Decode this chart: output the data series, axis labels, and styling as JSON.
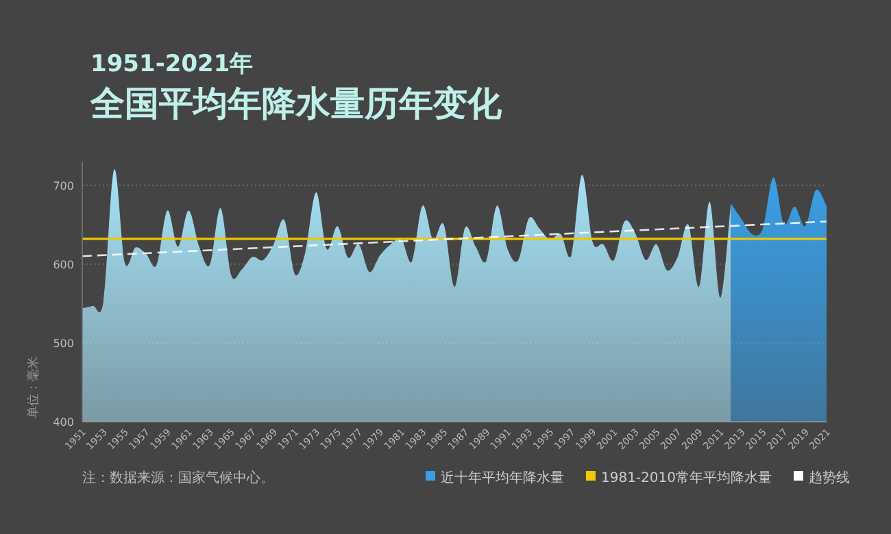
{
  "chart_data": {
    "type": "area",
    "subtitle": "1951-2021年",
    "title": "全国平均年降水量历年变化",
    "ylabel": "单位：毫米",
    "annotations": [
      "注：数据来源：国家气候中心。"
    ],
    "xlim": [
      1951,
      2021
    ],
    "xticks": [
      1951,
      1953,
      1955,
      1957,
      1959,
      1961,
      1963,
      1965,
      1967,
      1969,
      1971,
      1973,
      1975,
      1977,
      1979,
      1981,
      1983,
      1985,
      1987,
      1989,
      1991,
      1993,
      1995,
      1997,
      1999,
      2001,
      2003,
      2005,
      2007,
      2009,
      2011,
      2013,
      2015,
      2017,
      2019,
      2021
    ],
    "ylim": [
      400,
      730
    ],
    "yticks": [
      400,
      500,
      600,
      700
    ],
    "grid": "y",
    "legend": "bottom right",
    "series": [
      {
        "color": "#a6e2f6",
        "x": [
          1951,
          1952,
          1953,
          1954,
          1955,
          1956,
          1957,
          1958,
          1959,
          1960,
          1961,
          1962,
          1963,
          1964,
          1965,
          1966,
          1967,
          1968,
          1969,
          1970,
          1971,
          1972,
          1973,
          1974,
          1975,
          1976,
          1977,
          1978,
          1979,
          1980,
          1981,
          1982,
          1983,
          1984,
          1985,
          1986,
          1987,
          1988,
          1989,
          1990,
          1991,
          1992,
          1993,
          1994,
          1995,
          1996,
          1997,
          1998,
          1999,
          2000,
          2001,
          2002,
          2003,
          2004,
          2005,
          2006,
          2007,
          2008,
          2009,
          2010,
          2011,
          2012
        ],
        "values": [
          544,
          547,
          553,
          720,
          602,
          621,
          613,
          599,
          668,
          622,
          668,
          622,
          599,
          671,
          586,
          593,
          609,
          605,
          625,
          656,
          587,
          616,
          691,
          619,
          648,
          608,
          625,
          590,
          611,
          625,
          632,
          603,
          674,
          631,
          650,
          571,
          646,
          622,
          604,
          674,
          619,
          605,
          658,
          645,
          631,
          638,
          611,
          713,
          628,
          625,
          605,
          654,
          639,
          605,
          625,
          592,
          609,
          650,
          571,
          679,
          557,
          677
        ]
      },
      {
        "name": "近十年平均年降水量",
        "color": "#3a9fe6",
        "x": [
          2012,
          2013,
          2014,
          2015,
          2016,
          2017,
          2018,
          2019,
          2020,
          2021
        ],
        "values": [
          677,
          657,
          638,
          645,
          710,
          651,
          673,
          648,
          694,
          674
        ]
      },
      {
        "name": "趋势线",
        "type": "line",
        "color": "#ffffff",
        "line_style": "dashed",
        "x": [
          1951,
          2021
        ],
        "values": [
          610,
          654
        ]
      }
    ],
    "ref_lines": [
      {
        "axis": "y",
        "value": 632,
        "label": "1981-2010常年平均降水量",
        "color": "#f0c800"
      }
    ]
  }
}
